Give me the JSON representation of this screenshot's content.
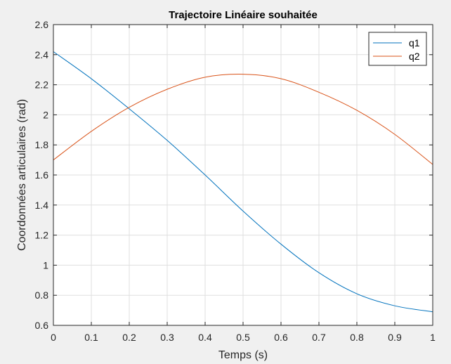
{
  "chart_data": {
    "type": "line",
    "title": "Trajectoire Linéaire souhaitée",
    "xlabel": "Temps (s)",
    "ylabel": "Coordonnées articulaires (rad)",
    "xlim": [
      0,
      1
    ],
    "ylim": [
      0.6,
      2.6
    ],
    "xticks": [
      0,
      0.1,
      0.2,
      0.3,
      0.4,
      0.5,
      0.6,
      0.7,
      0.8,
      0.9,
      1
    ],
    "xtick_labels": [
      "0",
      "0.1",
      "0.2",
      "0.3",
      "0.4",
      "0.5",
      "0.6",
      "0.7",
      "0.8",
      "0.9",
      "1"
    ],
    "yticks": [
      0.6,
      0.8,
      1.0,
      1.2,
      1.4,
      1.6,
      1.8,
      2.0,
      2.2,
      2.4,
      2.6
    ],
    "ytick_labels": [
      "0.6",
      "0.8",
      "1",
      "1.2",
      "1.4",
      "1.6",
      "1.8",
      "2",
      "2.2",
      "2.4",
      "2.6"
    ],
    "grid": true,
    "legend_position": "top-right",
    "x": [
      0,
      0.1,
      0.2,
      0.3,
      0.4,
      0.5,
      0.6,
      0.7,
      0.8,
      0.9,
      1.0
    ],
    "series": [
      {
        "name": "q1",
        "color": "#0072bd",
        "values": [
          2.42,
          2.24,
          2.04,
          1.83,
          1.6,
          1.36,
          1.14,
          0.95,
          0.81,
          0.73,
          0.69
        ]
      },
      {
        "name": "q2",
        "color": "#d95319",
        "values": [
          1.7,
          1.89,
          2.05,
          2.17,
          2.25,
          2.27,
          2.24,
          2.15,
          2.03,
          1.87,
          1.67
        ]
      }
    ]
  }
}
